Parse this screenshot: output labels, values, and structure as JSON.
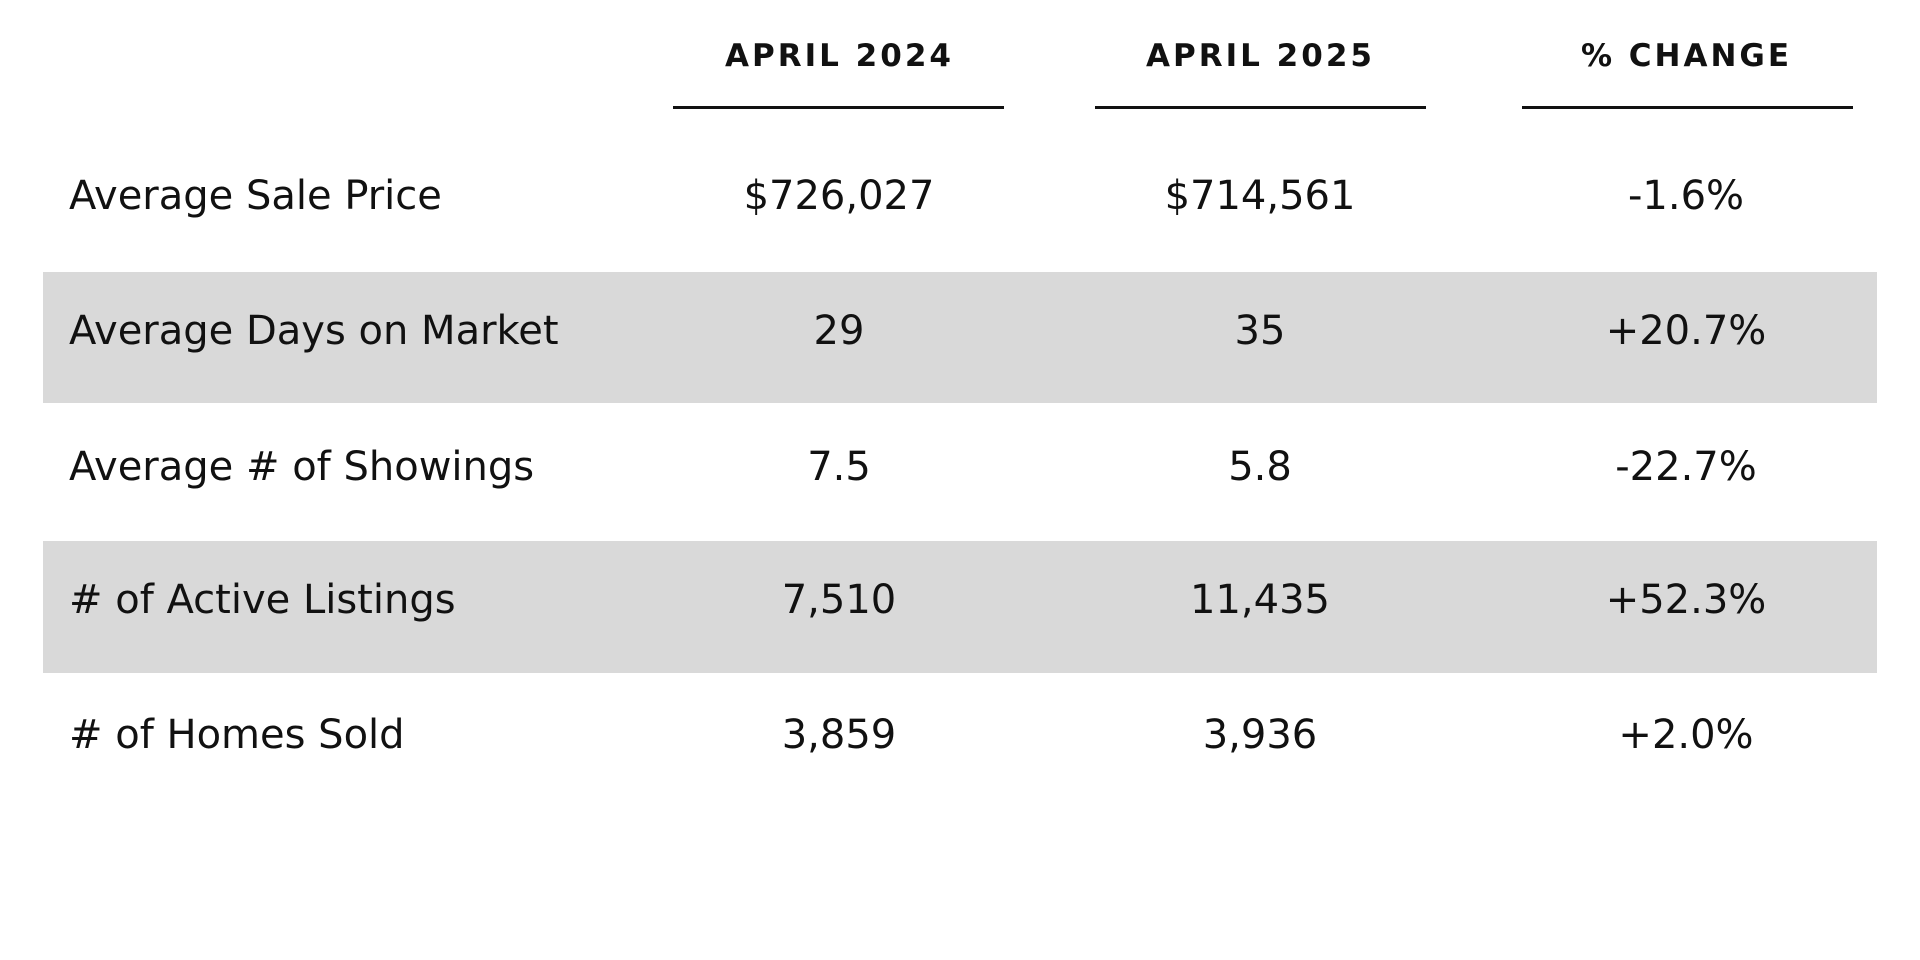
{
  "table": {
    "columns": [
      "APRIL 2024",
      "APRIL 2025",
      "% CHANGE"
    ],
    "rows": [
      [
        "Average Sale Price",
        "$726,027",
        "$714,561",
        "-1.6%"
      ],
      [
        "Average Days on Market",
        "29",
        "35",
        "+20.7%"
      ],
      [
        "Average # of Showings",
        "7.5",
        "5.8",
        "-22.7%"
      ],
      [
        "# of Active Listings",
        "7,510",
        "11,435",
        "+52.3%"
      ],
      [
        "# of Homes Sold",
        "3,859",
        "3,936",
        "+2.0%"
      ]
    ]
  }
}
